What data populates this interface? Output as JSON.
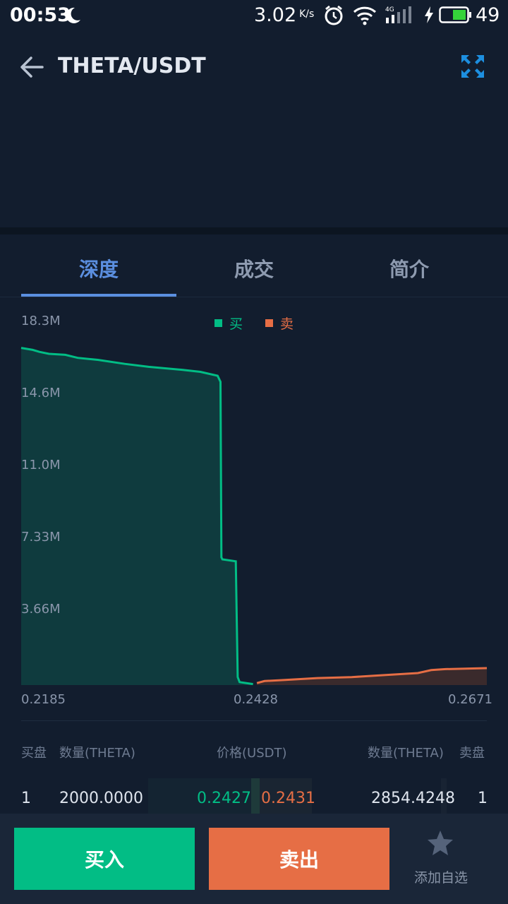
{
  "status_bar": {
    "time": "00:53",
    "speed_value": "3.02",
    "speed_unit": "K/s",
    "network": "4G",
    "battery": "49"
  },
  "header": {
    "title": "THETA/USDT"
  },
  "tabs": [
    {
      "label": "深度"
    },
    {
      "label": "成交"
    },
    {
      "label": "简介"
    }
  ],
  "legend": {
    "buy": "买",
    "sell": "卖"
  },
  "colors": {
    "buy": "#02bd85",
    "sell": "#e66e45",
    "accent": "#5b8fe0",
    "background": "#121d2e"
  },
  "chart_data": {
    "type": "area",
    "y_ticks": [
      "18.3M",
      "14.6M",
      "11.0M",
      "7.33M",
      "3.66M"
    ],
    "x_ticks": [
      "0.2185",
      "0.2428",
      "0.2671"
    ],
    "xlim": [
      0.2185,
      0.2671
    ],
    "ylim": [
      0,
      18300000
    ],
    "grid": false,
    "legend_position": "top-center",
    "series": [
      {
        "name": "买",
        "x": [
          0.2185,
          0.2197,
          0.2204,
          0.2214,
          0.2231,
          0.2244,
          0.2265,
          0.2293,
          0.2318,
          0.2353,
          0.2372,
          0.239,
          0.2393,
          0.2394,
          0.2395,
          0.2409,
          0.2411,
          0.2413,
          0.2427
        ],
        "y": [
          16900000.0,
          16800000.0,
          16700000.0,
          16600000.0,
          16550000.0,
          16400000.0,
          16300000.0,
          16100000.0,
          15950000.0,
          15800000.0,
          15700000.0,
          15500000.0,
          15200000.0,
          6400000.0,
          6300000.0,
          6200000.0,
          400000.0,
          150000.0,
          50000.0
        ]
      },
      {
        "name": "卖",
        "x": [
          0.2431,
          0.2439,
          0.2459,
          0.2494,
          0.253,
          0.2564,
          0.2599,
          0.2613,
          0.2628,
          0.2671
        ],
        "y": [
          100000.0,
          200000.0,
          250000.0,
          350000.0,
          400000.0,
          500000.0,
          600000.0,
          750000.0,
          800000.0,
          850000.0
        ]
      }
    ]
  },
  "orderbook": {
    "headers": {
      "buy_side": "买盘",
      "buy_qty": "数量(THETA)",
      "price": "价格(USDT)",
      "sell_qty": "数量(THETA)",
      "sell_side": "卖盘"
    },
    "rows": [
      {
        "buy_index": "1",
        "buy_qty": "2000.0000",
        "buy_price": "0.2427",
        "sell_price": "0.2431",
        "sell_qty": "2854.4248",
        "sell_index": "1"
      }
    ]
  },
  "actions": {
    "buy_label": "买入",
    "sell_label": "卖出",
    "favorite_label": "添加自选"
  }
}
